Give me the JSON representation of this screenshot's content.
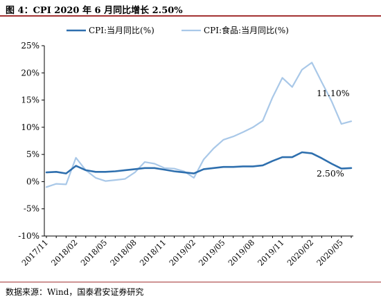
{
  "header": {
    "title": "图 4：CPI 2020 年 6 月同比增长 2.50%"
  },
  "footer": {
    "source": "数据来源：Wind，国泰君安证券研究"
  },
  "chart_data": {
    "type": "line",
    "title": "",
    "xlabel": "",
    "ylabel": "",
    "ylim": [
      -10,
      25
    ],
    "y_ticks": [
      "-10%",
      "-5%",
      "0%",
      "5%",
      "10%",
      "15%",
      "20%",
      "25%"
    ],
    "y_tick_values": [
      -10,
      -5,
      0,
      5,
      10,
      15,
      20,
      25
    ],
    "x": [
      "2017/11",
      "2017/12",
      "2018/01",
      "2018/02",
      "2018/03",
      "2018/04",
      "2018/05",
      "2018/06",
      "2018/07",
      "2018/08",
      "2018/09",
      "2018/10",
      "2018/11",
      "2018/12",
      "2019/01",
      "2019/02",
      "2019/03",
      "2019/04",
      "2019/05",
      "2019/06",
      "2019/07",
      "2019/08",
      "2019/09",
      "2019/10",
      "2019/11",
      "2019/12",
      "2020/01",
      "2020/02",
      "2020/03",
      "2020/04",
      "2020/05",
      "2020/06"
    ],
    "x_tick_labels": [
      "2017/11",
      "2018/02",
      "2018/05",
      "2018/08",
      "2018/11",
      "2019/02",
      "2019/05",
      "2019/08",
      "2019/11",
      "2020/02",
      "2020/05"
    ],
    "legend": {
      "position": "top"
    },
    "grid": false,
    "series": [
      {
        "name": "CPI:当月同比(%)",
        "color": "#2e6fae",
        "values": [
          1.7,
          1.8,
          1.5,
          2.9,
          2.1,
          1.8,
          1.8,
          1.9,
          2.1,
          2.3,
          2.5,
          2.5,
          2.2,
          1.9,
          1.7,
          1.5,
          2.3,
          2.5,
          2.7,
          2.7,
          2.8,
          2.8,
          3.0,
          3.8,
          4.5,
          4.5,
          5.4,
          5.2,
          4.3,
          3.3,
          2.4,
          2.5
        ]
      },
      {
        "name": "CPI:食品:当月同比(%)",
        "color": "#a9c8e8",
        "values": [
          -1.0,
          -0.4,
          -0.5,
          4.4,
          2.1,
          0.7,
          0.1,
          0.3,
          0.5,
          1.7,
          3.6,
          3.3,
          2.5,
          2.4,
          1.9,
          0.7,
          4.1,
          6.1,
          7.7,
          8.3,
          9.1,
          10.0,
          11.2,
          15.5,
          19.1,
          17.4,
          20.6,
          21.9,
          18.3,
          14.8,
          10.6,
          11.1
        ]
      }
    ],
    "annotations": [
      {
        "text": "11.10%",
        "series": 1,
        "x": "2020/06",
        "y": 11.1
      },
      {
        "text": "2.50%",
        "series": 0,
        "x": "2020/06",
        "y": 2.5
      }
    ]
  }
}
